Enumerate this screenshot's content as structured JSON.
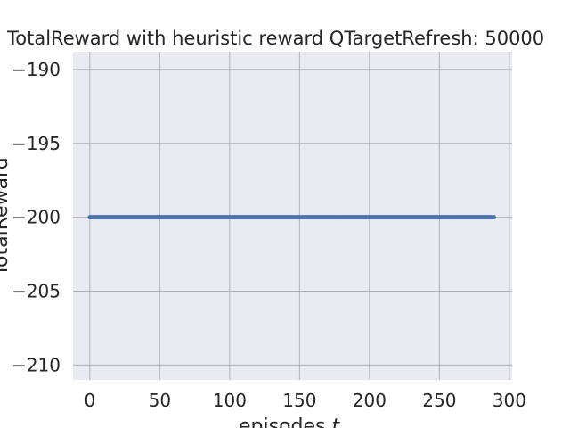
{
  "chart_data": {
    "type": "scatter",
    "title": "TotalReward with heuristic reward QTargetRefresh: 50000",
    "xlabel": "episodes",
    "xlabel_var": "t",
    "ylabel": "TotalReward",
    "xlim": [
      -12,
      302
    ],
    "ylim": [
      -211,
      -188.8
    ],
    "xticks": [
      0,
      50,
      100,
      150,
      200,
      250,
      300
    ],
    "yticks": [
      -190,
      -195,
      -200,
      -205,
      -210
    ],
    "xtick_labels": [
      "0",
      "50",
      "100",
      "150",
      "200",
      "250",
      "300"
    ],
    "ytick_labels": [
      "−190",
      "−195",
      "−200",
      "−205",
      "−210"
    ],
    "grid": true,
    "series": [
      {
        "x_start": 0,
        "x_end": 289,
        "x_step": 1,
        "y_constant": -200,
        "color": "#4c72b0"
      }
    ],
    "colors": {
      "plot_background": "#eaeaf2",
      "grid": "#b0b0b8",
      "text": "#262626"
    }
  }
}
